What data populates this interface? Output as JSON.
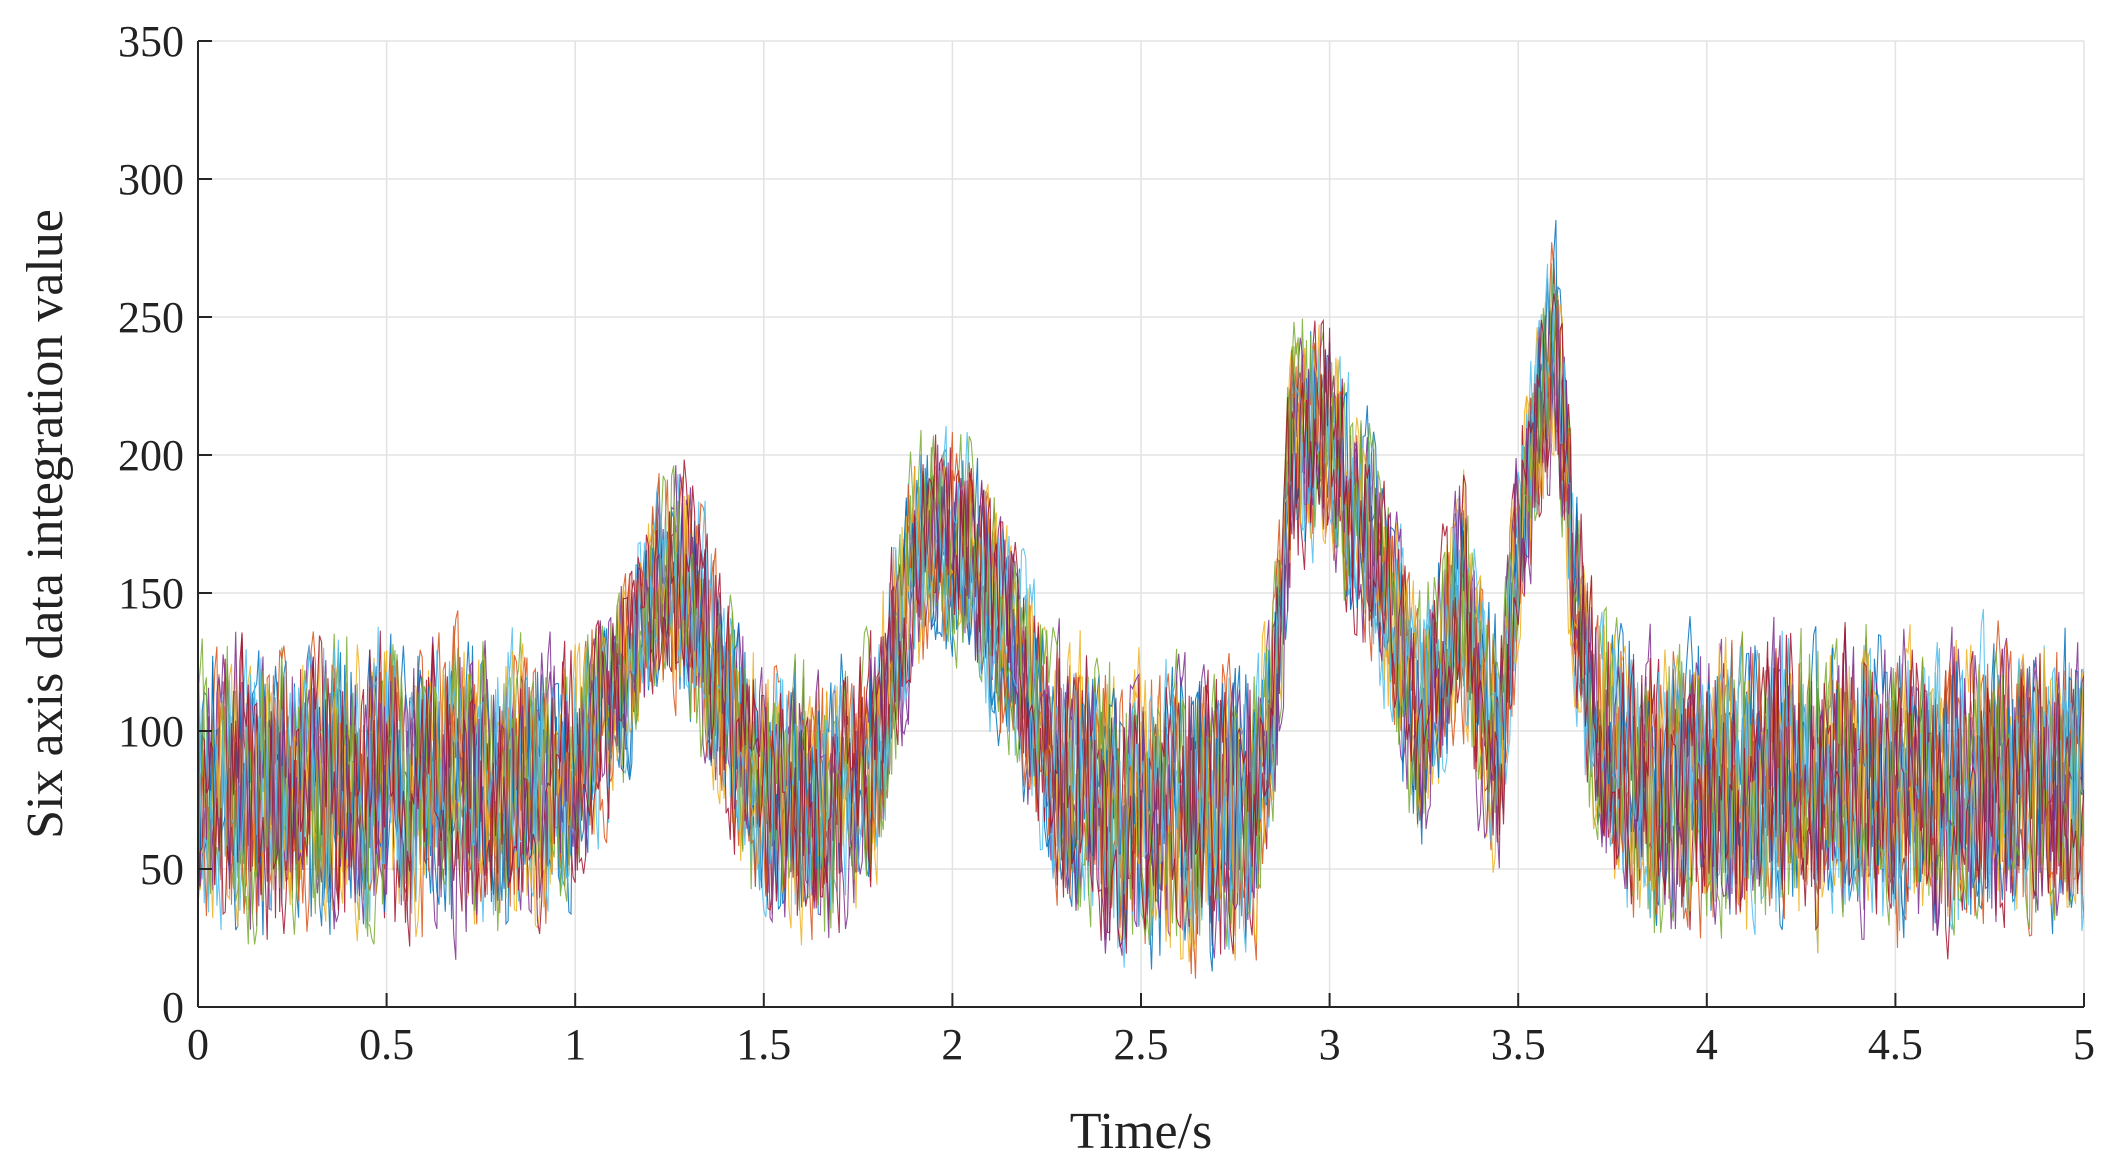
{
  "chart_data": {
    "type": "line",
    "title": "",
    "xlabel": "Time/s",
    "ylabel": "Six axis data integration value",
    "xlim": [
      0,
      5
    ],
    "ylim": [
      0,
      350
    ],
    "xticks": [
      0,
      0.5,
      1,
      1.5,
      2,
      2.5,
      3,
      3.5,
      4,
      4.5,
      5
    ],
    "xtick_labels": [
      "0",
      "0.5",
      "1",
      "1.5",
      "2",
      "2.5",
      "3",
      "3.5",
      "4",
      "4.5",
      "5"
    ],
    "yticks": [
      0,
      50,
      100,
      150,
      200,
      250,
      300,
      350
    ],
    "ytick_labels": [
      "0",
      "50",
      "100",
      "150",
      "200",
      "250",
      "300",
      "350"
    ],
    "grid": true,
    "legend": "none",
    "series_count": 14,
    "series_colors": [
      "#0072BD",
      "#D95319",
      "#EDB120",
      "#7E2F8E",
      "#77AC30",
      "#4DBEEE",
      "#A2142F"
    ],
    "envelope": {
      "x": [
        0,
        0.1,
        0.2,
        0.3,
        0.4,
        0.5,
        0.6,
        0.7,
        0.8,
        0.9,
        1.0,
        1.05,
        1.1,
        1.15,
        1.2,
        1.25,
        1.3,
        1.35,
        1.4,
        1.45,
        1.5,
        1.6,
        1.7,
        1.8,
        1.85,
        1.9,
        1.95,
        2.0,
        2.05,
        2.1,
        2.2,
        2.3,
        2.4,
        2.5,
        2.6,
        2.7,
        2.8,
        2.85,
        2.9,
        2.95,
        3.0,
        3.05,
        3.1,
        3.15,
        3.2,
        3.25,
        3.3,
        3.35,
        3.4,
        3.45,
        3.5,
        3.55,
        3.6,
        3.65,
        3.7,
        3.8,
        3.9,
        4.0,
        4.1,
        4.2,
        4.3,
        4.4,
        4.5,
        4.6,
        4.7,
        4.8,
        4.9,
        5.0
      ],
      "center": [
        78,
        80,
        78,
        80,
        80,
        82,
        80,
        82,
        78,
        80,
        85,
        98,
        112,
        128,
        145,
        158,
        150,
        130,
        112,
        95,
        78,
        75,
        78,
        90,
        130,
        162,
        168,
        170,
        165,
        150,
        112,
        85,
        72,
        72,
        70,
        70,
        72,
        110,
        200,
        210,
        205,
        185,
        170,
        150,
        120,
        100,
        125,
        150,
        110,
        90,
        170,
        210,
        240,
        150,
        105,
        85,
        80,
        82,
        80,
        85,
        80,
        85,
        80,
        78,
        80,
        82,
        80,
        78
      ],
      "halfwidth": [
        48,
        48,
        48,
        48,
        48,
        48,
        48,
        48,
        48,
        45,
        40,
        38,
        36,
        34,
        35,
        38,
        38,
        40,
        40,
        42,
        42,
        45,
        45,
        42,
        40,
        38,
        36,
        36,
        38,
        40,
        42,
        45,
        48,
        48,
        48,
        48,
        48,
        40,
        40,
        40,
        38,
        38,
        38,
        38,
        40,
        40,
        42,
        42,
        40,
        40,
        40,
        38,
        40,
        40,
        42,
        45,
        48,
        48,
        48,
        48,
        48,
        48,
        48,
        48,
        48,
        48,
        48,
        48
      ],
      "samples_per_series": 900
    }
  }
}
